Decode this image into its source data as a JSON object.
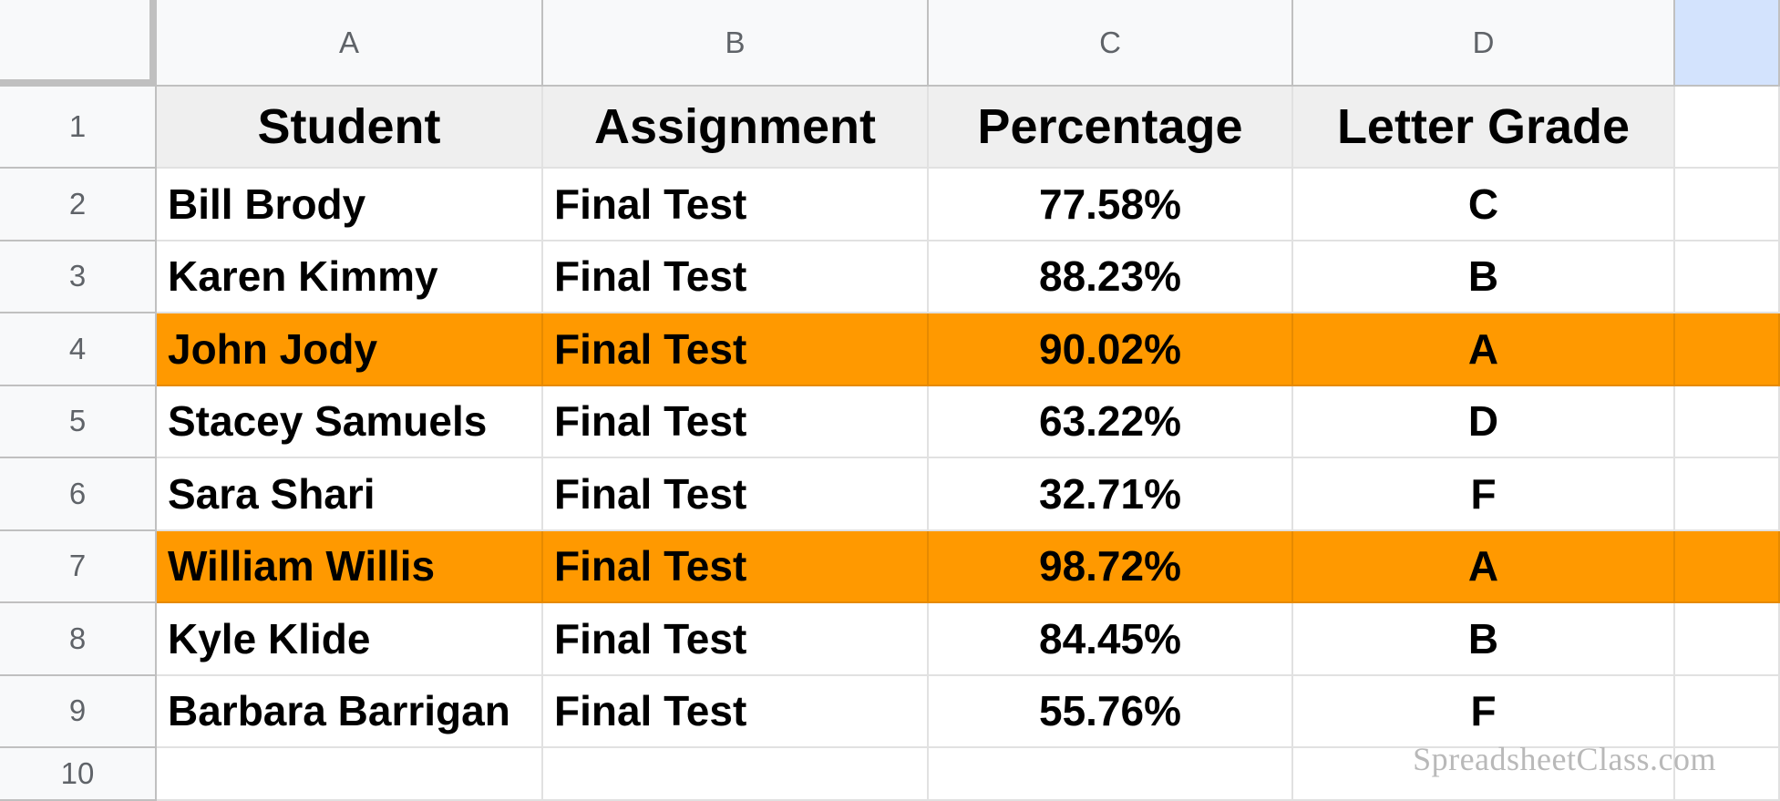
{
  "columns": [
    "A",
    "B",
    "C",
    "D",
    ""
  ],
  "row_numbers": [
    "1",
    "2",
    "3",
    "4",
    "5",
    "6",
    "7",
    "8",
    "9",
    "10"
  ],
  "headers": [
    "Student",
    "Assignment",
    "Percentage",
    "Letter Grade"
  ],
  "rows": [
    {
      "student": "Bill Brody",
      "assignment": "Final Test",
      "percentage": "77.58%",
      "grade": "C",
      "highlighted": false
    },
    {
      "student": "Karen Kimmy",
      "assignment": "Final Test",
      "percentage": "88.23%",
      "grade": "B",
      "highlighted": false
    },
    {
      "student": "John Jody",
      "assignment": "Final Test",
      "percentage": "90.02%",
      "grade": "A",
      "highlighted": true
    },
    {
      "student": "Stacey Samuels",
      "assignment": "Final Test",
      "percentage": "63.22%",
      "grade": "D",
      "highlighted": false
    },
    {
      "student": "Sara Shari",
      "assignment": "Final Test",
      "percentage": "32.71%",
      "grade": "F",
      "highlighted": false
    },
    {
      "student": "William Willis",
      "assignment": "Final Test",
      "percentage": "98.72%",
      "grade": "A",
      "highlighted": true
    },
    {
      "student": "Kyle Klide",
      "assignment": "Final Test",
      "percentage": "84.45%",
      "grade": "B",
      "highlighted": false
    },
    {
      "student": "Barbara Barrigan",
      "assignment": "Final Test",
      "percentage": "55.76%",
      "grade": "F",
      "highlighted": false
    }
  ],
  "colors": {
    "highlight": "#ff9900",
    "header_fill": "#efefef",
    "selected_column_header": "#d3e3fd"
  },
  "watermark": "SpreadsheetClass.com"
}
